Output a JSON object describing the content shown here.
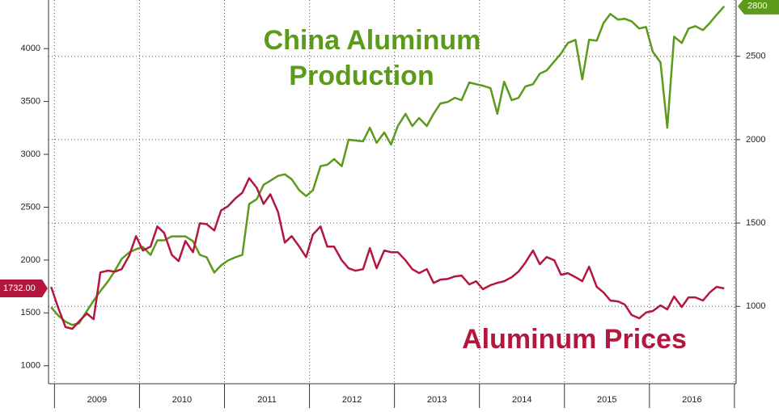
{
  "chart_data": {
    "type": "line",
    "annotations": [
      "China Aluminum",
      "Production",
      "Aluminum Prices"
    ],
    "x": [
      2008.96,
      2009.04,
      2009.13,
      2009.21,
      2009.29,
      2009.38,
      2009.46,
      2009.54,
      2009.63,
      2009.71,
      2009.79,
      2009.88,
      2009.96,
      2010.04,
      2010.13,
      2010.21,
      2010.29,
      2010.38,
      2010.46,
      2010.54,
      2010.63,
      2010.71,
      2010.79,
      2010.88,
      2010.96,
      2011.04,
      2011.13,
      2011.21,
      2011.29,
      2011.38,
      2011.46,
      2011.54,
      2011.63,
      2011.71,
      2011.79,
      2011.88,
      2011.96,
      2012.04,
      2012.13,
      2012.21,
      2012.29,
      2012.38,
      2012.46,
      2012.54,
      2012.63,
      2012.71,
      2012.79,
      2012.88,
      2012.96,
      2013.04,
      2013.13,
      2013.21,
      2013.29,
      2013.38,
      2013.46,
      2013.54,
      2013.63,
      2013.71,
      2013.79,
      2013.88,
      2013.96,
      2014.04,
      2014.13,
      2014.21,
      2014.29,
      2014.38,
      2014.46,
      2014.54,
      2014.63,
      2014.71,
      2014.79,
      2014.88,
      2014.96,
      2015.04,
      2015.13,
      2015.21,
      2015.29,
      2015.38,
      2015.46,
      2015.54,
      2015.63,
      2015.71,
      2015.79,
      2015.88,
      2015.96,
      2016.04,
      2016.13,
      2016.21,
      2016.29,
      2016.38,
      2016.46,
      2016.54,
      2016.63,
      2016.71,
      2016.79,
      2016.88
    ],
    "series": [
      {
        "name": "China Aluminum Production",
        "color": "#5b9a1a",
        "axis": "y2",
        "last_label": "2800",
        "values": [
          995,
          947,
          908,
          889,
          899,
          971,
          1034,
          1092,
          1150,
          1213,
          1285,
          1324,
          1343,
          1357,
          1309,
          1396,
          1396,
          1420,
          1420,
          1420,
          1391,
          1309,
          1295,
          1203,
          1246,
          1275,
          1295,
          1309,
          1614,
          1643,
          1729,
          1754,
          1783,
          1792,
          1763,
          1696,
          1662,
          1696,
          1841,
          1850,
          1884,
          1841,
          2000,
          1995,
          1990,
          2072,
          1981,
          2043,
          1971,
          2082,
          2155,
          2082,
          2130,
          2082,
          2155,
          2217,
          2227,
          2251,
          2237,
          2343,
          2333,
          2324,
          2309,
          2155,
          2348,
          2237,
          2251,
          2319,
          2333,
          2396,
          2415,
          2469,
          2517,
          2580,
          2599,
          2362,
          2599,
          2594,
          2700,
          2754,
          2720,
          2725,
          2710,
          2667,
          2676,
          2527,
          2464,
          2072,
          2618,
          2580,
          2667,
          2681,
          2657,
          2700,
          2749,
          2800
        ]
      },
      {
        "name": "Aluminum Prices",
        "color": "#b3173e",
        "axis": "y",
        "last_label": "1732.00",
        "values": [
          1746,
          1556,
          1366,
          1350,
          1420,
          1495,
          1440,
          1883,
          1900,
          1890,
          1914,
          2043,
          2226,
          2090,
          2127,
          2318,
          2257,
          2050,
          1990,
          2180,
          2074,
          2348,
          2340,
          2280,
          2470,
          2508,
          2584,
          2637,
          2775,
          2683,
          2531,
          2622,
          2455,
          2165,
          2226,
          2127,
          2028,
          2241,
          2318,
          2127,
          2127,
          1998,
          1922,
          1899,
          1914,
          2112,
          1922,
          2090,
          2074,
          2074,
          1998,
          1914,
          1876,
          1914,
          1784,
          1815,
          1822,
          1845,
          1853,
          1769,
          1800,
          1724,
          1762,
          1784,
          1800,
          1838,
          1891,
          1975,
          2090,
          1960,
          2028,
          1998,
          1861,
          1876,
          1838,
          1800,
          1937,
          1746,
          1693,
          1617,
          1609,
          1579,
          1480,
          1449,
          1503,
          1518,
          1571,
          1533,
          1655,
          1556,
          1647,
          1647,
          1617,
          1693,
          1746,
          1732
        ]
      }
    ],
    "xlim": [
      2008.93,
      2017.02
    ],
    "xgrid": [
      2009,
      2010,
      2011,
      2012,
      2013,
      2014,
      2015,
      2016,
      2017
    ],
    "xticks": [
      {
        "value": 2009.5,
        "label": "2009"
      },
      {
        "value": 2010.5,
        "label": "2010"
      },
      {
        "value": 2011.5,
        "label": "2011"
      },
      {
        "value": 2012.5,
        "label": "2012"
      },
      {
        "value": 2013.5,
        "label": "2013"
      },
      {
        "value": 2014.5,
        "label": "2014"
      },
      {
        "value": 2015.5,
        "label": "2015"
      },
      {
        "value": 2016.5,
        "label": "2016"
      }
    ],
    "ylim": [
      830,
      4460
    ],
    "yticks": [
      1000,
      1500,
      2000,
      2500,
      3000,
      3500,
      4000
    ],
    "y2lim": [
      536,
      2838
    ],
    "y2ticks": [
      1000,
      1500,
      2000,
      2500
    ],
    "grid": true
  }
}
